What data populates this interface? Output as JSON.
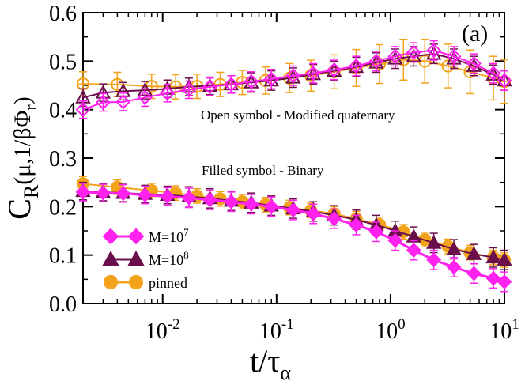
{
  "chart_data": {
    "type": "line",
    "panel_label": "(a)",
    "xlabel": "t/τ_α",
    "ylabel": "C_R(μ,1/βΦ_r)",
    "xscale": "log",
    "xlim": [
      0.002,
      10
    ],
    "ylim": [
      0.0,
      0.6
    ],
    "x_tick_values": [
      0.01,
      0.1,
      1,
      10
    ],
    "x_tick_labels": [
      {
        "base": "10",
        "exp": "-2"
      },
      {
        "base": "10",
        "exp": "-1"
      },
      {
        "base": "10",
        "exp": "0"
      },
      {
        "base": "10",
        "exp": "1"
      }
    ],
    "y_ticks": [
      "0.0",
      "0.1",
      "0.2",
      "0.3",
      "0.4",
      "0.5",
      "0.6"
    ],
    "annotations": {
      "open": "Open symbol - Modified quaternary",
      "filled": "Filled symbol - Binary"
    },
    "legend": [
      {
        "base": "M=10",
        "exp": "7",
        "series": "M7"
      },
      {
        "base": "M=10",
        "exp": "8",
        "series": "M8"
      },
      {
        "base": "pinned",
        "exp": "",
        "series": "pinned"
      }
    ],
    "colors": {
      "M7": "#ff22ee",
      "M8": "#6b0f4c",
      "pinned": "#f2a31b"
    },
    "series": [
      {
        "name": "M=10^7 (modified quaternary)",
        "key": "M7",
        "marker": "diamond",
        "filled": false,
        "x": [
          0.002,
          0.003,
          0.0045,
          0.007,
          0.011,
          0.017,
          0.026,
          0.04,
          0.06,
          0.09,
          0.14,
          0.21,
          0.32,
          0.5,
          0.75,
          1.1,
          1.6,
          2.4,
          3.6,
          5.4,
          8.0,
          10.0
        ],
        "y": [
          0.4,
          0.415,
          0.416,
          0.425,
          0.434,
          0.441,
          0.447,
          0.452,
          0.458,
          0.463,
          0.47,
          0.475,
          0.482,
          0.49,
          0.5,
          0.51,
          0.518,
          0.522,
          0.51,
          0.495,
          0.475,
          0.46
        ],
        "err": [
          0.018,
          0.018,
          0.018,
          0.018,
          0.018,
          0.018,
          0.018,
          0.018,
          0.02,
          0.02,
          0.02,
          0.02,
          0.02,
          0.02,
          0.02,
          0.02,
          0.02,
          0.02,
          0.02,
          0.02,
          0.02,
          0.02
        ]
      },
      {
        "name": "M=10^8 (modified quaternary)",
        "key": "M8",
        "marker": "triangle",
        "filled": false,
        "x": [
          0.002,
          0.003,
          0.0045,
          0.007,
          0.011,
          0.017,
          0.026,
          0.04,
          0.06,
          0.09,
          0.14,
          0.21,
          0.32,
          0.5,
          0.75,
          1.1,
          1.6,
          2.4,
          3.6,
          5.4,
          8.0,
          10.0
        ],
        "y": [
          0.425,
          0.435,
          0.438,
          0.44,
          0.443,
          0.447,
          0.449,
          0.452,
          0.456,
          0.46,
          0.466,
          0.473,
          0.48,
          0.488,
          0.497,
          0.505,
          0.51,
          0.515,
          0.505,
          0.49,
          0.472,
          0.46
        ],
        "err": [
          0.018,
          0.018,
          0.018,
          0.018,
          0.018,
          0.018,
          0.018,
          0.018,
          0.02,
          0.02,
          0.02,
          0.02,
          0.02,
          0.02,
          0.02,
          0.02,
          0.02,
          0.02,
          0.02,
          0.02,
          0.02,
          0.02
        ]
      },
      {
        "name": "pinned (modified quaternary)",
        "key": "pinned",
        "marker": "circle",
        "filled": false,
        "x": [
          0.002,
          0.004,
          0.008,
          0.013,
          0.02,
          0.032,
          0.05,
          0.08,
          0.13,
          0.2,
          0.32,
          0.5,
          0.8,
          1.3,
          2.0,
          3.2,
          5.0,
          8.0,
          10.0
        ],
        "y": [
          0.453,
          0.452,
          0.448,
          0.447,
          0.448,
          0.452,
          0.456,
          0.46,
          0.465,
          0.47,
          0.478,
          0.486,
          0.494,
          0.503,
          0.5,
          0.49,
          0.478,
          0.465,
          0.458
        ],
        "err": [
          0.025,
          0.025,
          0.025,
          0.025,
          0.025,
          0.025,
          0.025,
          0.028,
          0.03,
          0.032,
          0.035,
          0.038,
          0.04,
          0.042,
          0.045,
          0.045,
          0.045,
          0.045,
          0.045
        ]
      },
      {
        "name": "M=10^7 (binary)",
        "key": "M7",
        "marker": "diamond",
        "filled": true,
        "x": [
          0.002,
          0.003,
          0.0045,
          0.007,
          0.011,
          0.017,
          0.026,
          0.04,
          0.06,
          0.09,
          0.14,
          0.21,
          0.32,
          0.5,
          0.75,
          1.1,
          1.6,
          2.4,
          3.6,
          5.4,
          8.0,
          10.0
        ],
        "y": [
          0.23,
          0.228,
          0.227,
          0.224,
          0.221,
          0.218,
          0.214,
          0.21,
          0.205,
          0.2,
          0.193,
          0.185,
          0.175,
          0.162,
          0.148,
          0.13,
          0.11,
          0.09,
          0.075,
          0.062,
          0.052,
          0.045
        ],
        "err": [
          0.018,
          0.018,
          0.018,
          0.018,
          0.018,
          0.02,
          0.02,
          0.02,
          0.02,
          0.02,
          0.02,
          0.02,
          0.02,
          0.02,
          0.02,
          0.02,
          0.02,
          0.02,
          0.02,
          0.02,
          0.02,
          0.02
        ]
      },
      {
        "name": "M=10^8 (binary)",
        "key": "M8",
        "marker": "triangle",
        "filled": true,
        "x": [
          0.002,
          0.003,
          0.0045,
          0.007,
          0.011,
          0.017,
          0.026,
          0.04,
          0.06,
          0.09,
          0.14,
          0.21,
          0.32,
          0.5,
          0.75,
          1.1,
          1.6,
          2.4,
          3.6,
          5.4,
          8.0,
          10.0
        ],
        "y": [
          0.232,
          0.23,
          0.228,
          0.226,
          0.224,
          0.221,
          0.217,
          0.212,
          0.208,
          0.202,
          0.196,
          0.19,
          0.182,
          0.173,
          0.162,
          0.15,
          0.138,
          0.125,
          0.112,
          0.102,
          0.095,
          0.09
        ],
        "err": [
          0.018,
          0.018,
          0.018,
          0.018,
          0.018,
          0.02,
          0.02,
          0.02,
          0.02,
          0.02,
          0.02,
          0.02,
          0.02,
          0.02,
          0.02,
          0.02,
          0.02,
          0.02,
          0.02,
          0.02,
          0.02,
          0.02
        ]
      },
      {
        "name": "pinned (binary)",
        "key": "pinned",
        "marker": "circle",
        "filled": true,
        "x": [
          0.002,
          0.004,
          0.008,
          0.013,
          0.02,
          0.032,
          0.05,
          0.08,
          0.13,
          0.2,
          0.32,
          0.5,
          0.8,
          1.3,
          2.0,
          3.2,
          5.0,
          8.0,
          10.0
        ],
        "y": [
          0.247,
          0.24,
          0.233,
          0.228,
          0.222,
          0.216,
          0.21,
          0.204,
          0.198,
          0.192,
          0.185,
          0.175,
          0.163,
          0.148,
          0.132,
          0.118,
          0.105,
          0.095,
          0.09
        ],
        "err": [
          0.015,
          0.015,
          0.015,
          0.015,
          0.015,
          0.015,
          0.015,
          0.015,
          0.015,
          0.015,
          0.015,
          0.015,
          0.015,
          0.015,
          0.015,
          0.015,
          0.015,
          0.015,
          0.015
        ]
      }
    ]
  }
}
